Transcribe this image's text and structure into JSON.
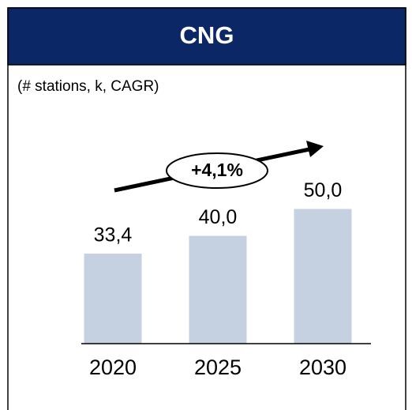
{
  "chart_data": {
    "type": "bar",
    "title": "CNG",
    "subtitle": "(# stations, k, CAGR)",
    "annotation": "+4,1%",
    "categories": [
      "2020",
      "2025",
      "2030"
    ],
    "values": [
      33.4,
      40.0,
      50.0
    ],
    "value_labels": [
      "33,4",
      "40,0",
      "50,0"
    ],
    "color": "#c5d0e1"
  }
}
